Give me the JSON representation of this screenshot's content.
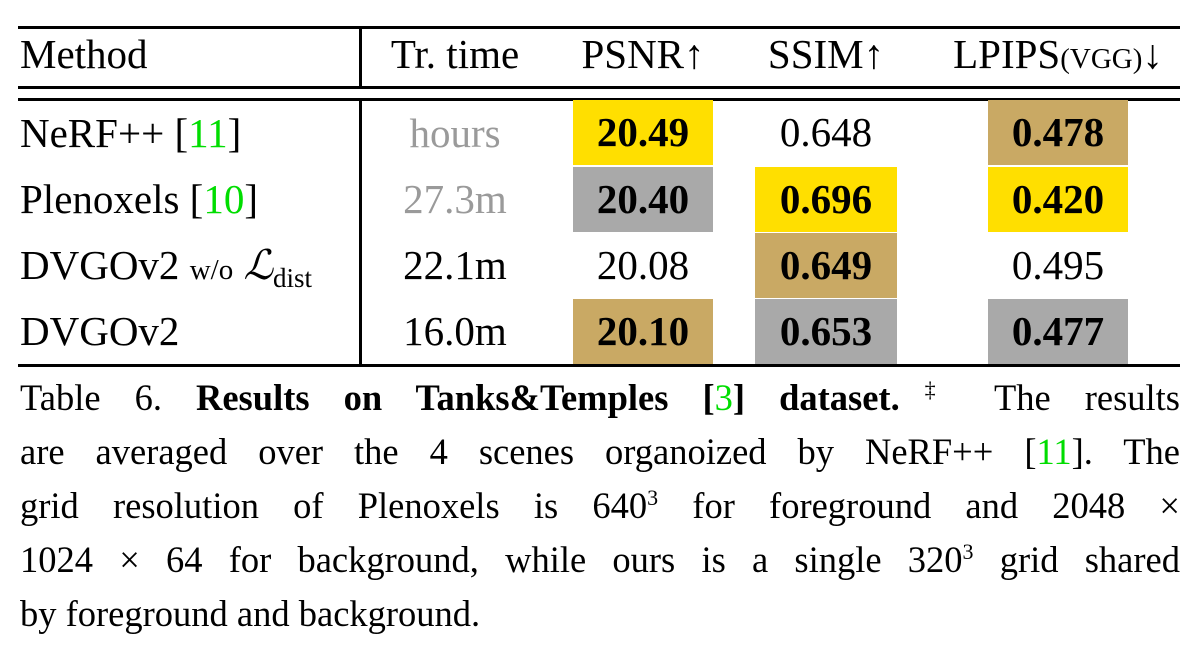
{
  "table": {
    "headers": {
      "method": "Method",
      "time": "Tr. time",
      "psnr": "PSNR↑",
      "ssim": "SSIM↑",
      "lpips": "LPIPS",
      "lpips_sub": "(VGG)",
      "lpips_arrow": "↓"
    },
    "rows": [
      {
        "method": "NeRF++ [",
        "cite": "11",
        "method_end": "]",
        "time": "hours",
        "psnr": "20.49",
        "ssim": "0.648",
        "lpips": "0.478"
      },
      {
        "method": "Plenoxels [",
        "cite": "10",
        "method_end": "]",
        "time": "27.3m",
        "psnr": "20.40",
        "ssim": "0.696",
        "lpips": "0.420"
      },
      {
        "method": "DVGOv2",
        "suffix": "w/o",
        "loss": "ℒ",
        "loss_sub": "dist",
        "time": "22.1m",
        "psnr": "20.08",
        "ssim": "0.649",
        "lpips": "0.495"
      },
      {
        "method": "DVGOv2",
        "time": "16.0m",
        "psnr": "20.10",
        "ssim": "0.653",
        "lpips": "0.477"
      }
    ],
    "colors": {
      "first": "#FFDF00",
      "second": "#A9A9A9",
      "third": "#C9A964",
      "citation": "#00DD00",
      "muted_text": "#9A9A9A"
    }
  },
  "caption": {
    "label": "Table 6.",
    "title_a": "Results on Tanks&Temples [",
    "title_cite": "3",
    "title_b": "] dataset.",
    "footnote_mark": "‡",
    "l1_tail": "The results",
    "l2_a": "are averaged over the 4 scenes organoized by NeRF++ [",
    "l2_cite": "11",
    "l2_b": "]. The",
    "l3_a": "grid resolution of Plenoxels is 640",
    "l3_sup": "3",
    "l3_b": "for foreground and 2048 ×",
    "l4_a": "1024 × 64 for background, while ours is a single 320",
    "l4_sup": "3",
    "l4_b": "grid shared",
    "l5": "by foreground and background."
  }
}
